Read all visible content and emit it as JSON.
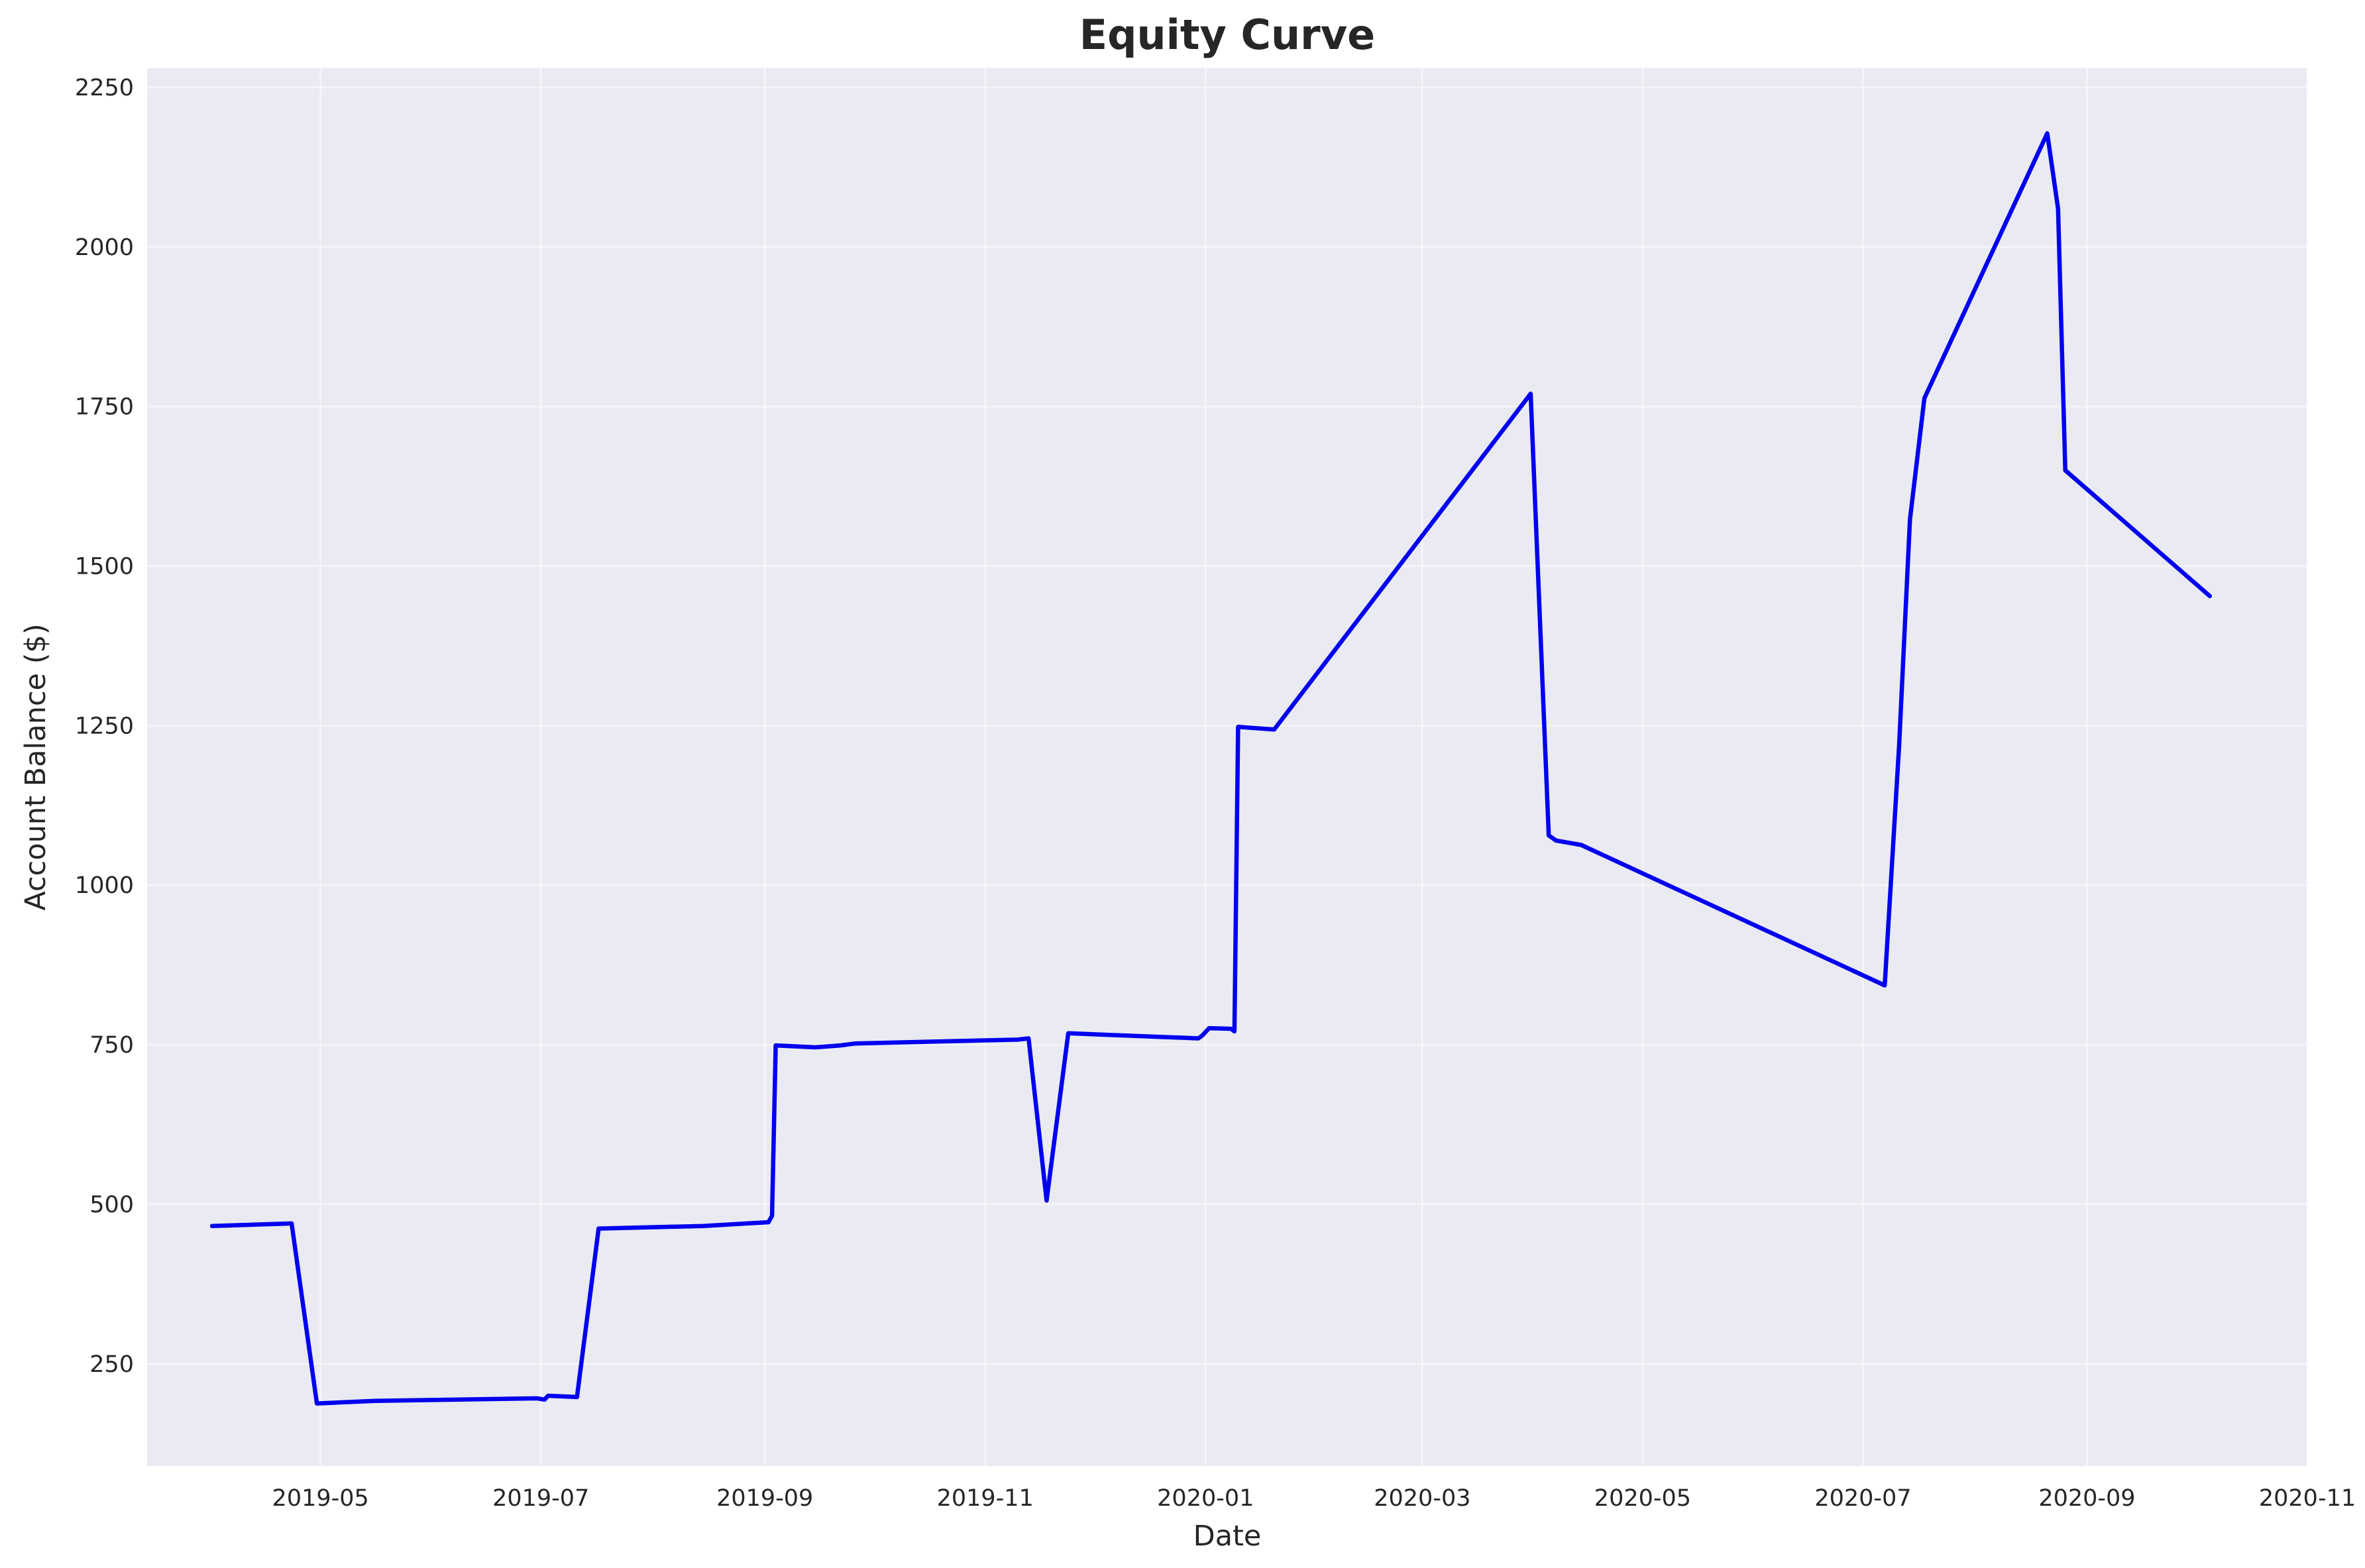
{
  "chart_data": {
    "type": "line",
    "title": "Equity Curve",
    "xlabel": "Date",
    "ylabel": "Account Balance ($)",
    "x_axis_type": "date",
    "xlim": [
      "2019-03-14",
      "2020-11-01"
    ],
    "ylim": [
      90,
      2280
    ],
    "x_ticks": [
      "2019-05",
      "2019-07",
      "2019-09",
      "2019-11",
      "2020-01",
      "2020-03",
      "2020-05",
      "2020-07",
      "2020-09",
      "2020-11"
    ],
    "y_ticks": [
      250,
      500,
      750,
      1000,
      1250,
      1500,
      1750,
      2000,
      2250
    ],
    "grid": true,
    "legend": false,
    "colors": {
      "background": "#eaeaf2",
      "line": "#0000ee",
      "text": "#262626"
    },
    "series": [
      {
        "x": [
          "2019-04-01",
          "2019-04-23",
          "2019-04-30",
          "2019-05-16",
          "2019-06-30",
          "2019-07-02",
          "2019-07-03",
          "2019-07-11",
          "2019-07-17",
          "2019-08-15",
          "2019-09-02",
          "2019-09-03",
          "2019-09-04",
          "2019-09-15",
          "2019-09-22",
          "2019-09-26",
          "2019-11-10",
          "2019-11-13",
          "2019-11-18",
          "2019-11-24",
          "2019-12-30",
          "2019-12-31",
          "2020-01-02",
          "2020-01-08",
          "2020-01-09",
          "2020-01-10",
          "2020-01-20",
          "2020-03-31",
          "2020-04-05",
          "2020-04-07",
          "2020-04-14",
          "2020-07-07",
          "2020-07-11",
          "2020-07-14",
          "2020-07-18",
          "2020-08-21",
          "2020-08-24",
          "2020-08-26",
          "2020-10-05"
        ],
        "values": [
          466,
          470,
          188,
          192,
          196,
          194,
          200,
          198,
          462,
          466,
          472,
          482,
          749,
          746,
          749,
          752,
          758,
          760,
          506,
          768,
          760,
          764,
          776,
          775,
          771,
          1248,
          1244,
          1770,
          1078,
          1070,
          1063,
          843,
          1220,
          1573,
          1763,
          2178,
          2060,
          1650,
          1453
        ]
      }
    ]
  }
}
